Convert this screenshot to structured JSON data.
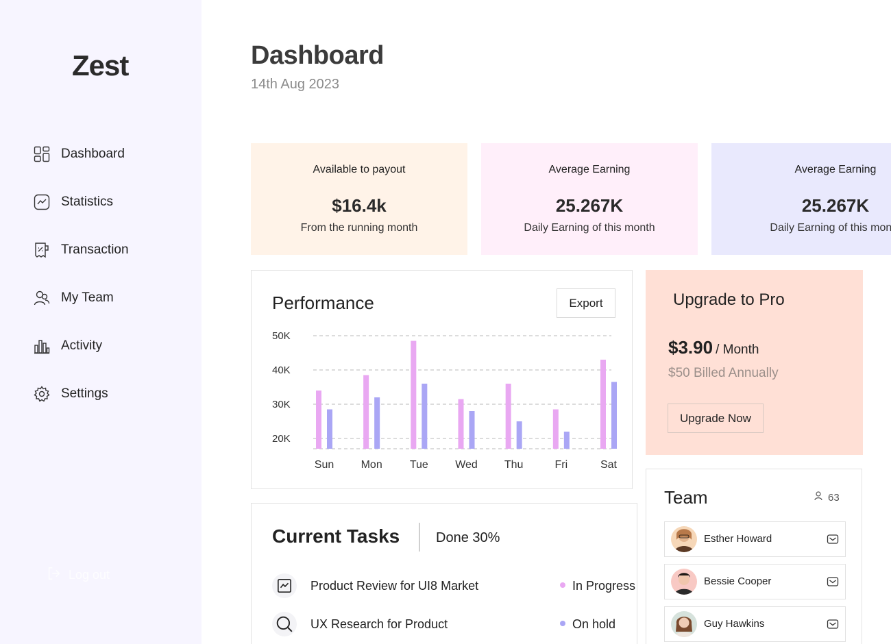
{
  "app": {
    "logo": "Zest"
  },
  "sidebar": {
    "items": [
      {
        "label": "Dashboard",
        "icon": "dashboard-grid-icon"
      },
      {
        "label": "Statistics",
        "icon": "statistics-icon"
      },
      {
        "label": "Transaction",
        "icon": "transaction-receipt-icon"
      },
      {
        "label": "My Team",
        "icon": "team-users-icon"
      },
      {
        "label": "Activity",
        "icon": "activity-bars-icon"
      },
      {
        "label": "Settings",
        "icon": "gear-icon"
      }
    ],
    "logout_label": "Log out"
  },
  "header": {
    "title": "Dashboard",
    "date": "14th Aug 2023"
  },
  "stats": [
    {
      "title": "Available to payout",
      "value": "$16.4k",
      "sub": "From the running month",
      "color": "#fff3e8"
    },
    {
      "title": "Average Earning",
      "value": "25.267K",
      "sub": "Daily Earning of this month",
      "color": "#ffeffa"
    },
    {
      "title": "Average Earning",
      "value": "25.267K",
      "sub": "Daily Earning of this month",
      "color": "#e9e9fd"
    }
  ],
  "performance": {
    "title": "Performance",
    "export_label": "Export"
  },
  "chart_data": {
    "type": "bar",
    "categories": [
      "Sun",
      "Mon",
      "Tue",
      "Wed",
      "Thu",
      "Fri",
      "Sat"
    ],
    "series": [
      {
        "values": [
          34000,
          38500,
          48500,
          31500,
          36000,
          28500,
          43000
        ],
        "color": "#e9a8f2"
      },
      {
        "values": [
          28500,
          32000,
          36000,
          28000,
          25000,
          22000,
          36500
        ],
        "color": "#aaa6f5"
      }
    ],
    "yticks": [
      "50K",
      "40K",
      "30K",
      "20K"
    ],
    "ylim": [
      17000,
      50000
    ],
    "grid": true
  },
  "upgrade": {
    "title": "Upgrade to Pro",
    "price": "$3.90",
    "period": "/ Month",
    "billed": "$50 Billed Annually",
    "button_label": "Upgrade Now"
  },
  "tasks": {
    "title": "Current Tasks",
    "done": "Done 30%",
    "items": [
      {
        "name": "Product Review for UI8 Market",
        "status": "In Progress",
        "dot_color": "#e9a8f2",
        "icon": "trend-chart-icon"
      },
      {
        "name": "UX Research for Product",
        "status": "On hold",
        "dot_color": "#aaa6f5",
        "icon": "search-icon"
      }
    ]
  },
  "team": {
    "title": "Team",
    "count": "63",
    "count_icon": "user-icon",
    "members": [
      {
        "name": "Esther Howard",
        "avatar_color": "#f6d7b8"
      },
      {
        "name": "Bessie Cooper",
        "avatar_color": "#f8c9c4"
      },
      {
        "name": "Guy Hawkins",
        "avatar_color": "#d6e2dc"
      }
    ]
  }
}
